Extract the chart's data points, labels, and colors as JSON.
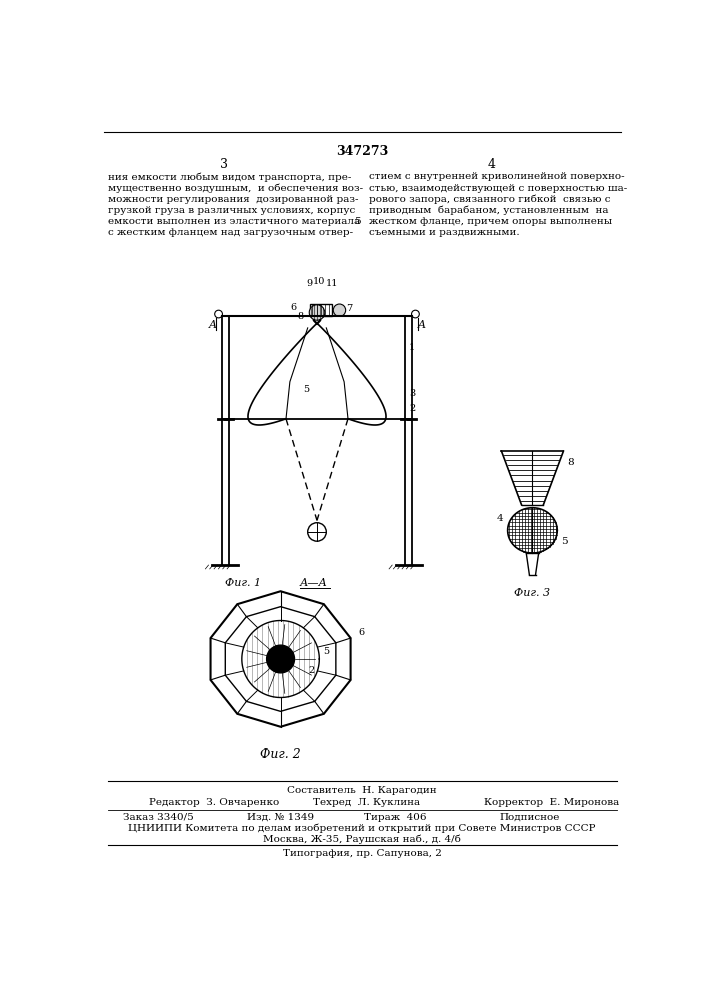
{
  "patent_number": "347273",
  "page_left": "3",
  "page_right": "4",
  "text_left": "ния емкости любым видом транспорта, пре-\nмущественно воздушным,  и обеспечения воз-\nможности регулирования  дозированной раз-\nгрузкой груза в различных условиях, корпус\nемкости выполнен из эластичного материала\nс жестким фланцем над загрузочным отвер-",
  "text_right_5": "5",
  "text_right": "стием с внутренней криволинейной поверхно-\nстью, взаимодействующей с поверхностью ша-\nрового запора, связанного гибкой  связью с\nприводным  барабаном, установленным  на\nжестком фланце, причем опоры выполнены\nсъемными и раздвижными.",
  "fig1_label": "Фиг. 1",
  "fig2_label": "Фиг. 2",
  "fig3_label": "Фиг. 3",
  "section_label": "А—А",
  "footer_line1": "Составитель  Н. Карагодин",
  "footer_line2_col1": "Редактор  З. Овчаренко",
  "footer_line2_col2": "Техред  Л. Куклина",
  "footer_line2_col3": "Корректор  Е. Миронова",
  "footer_line3_col1": "Заказ 3340/5",
  "footer_line3_col2": "Изд. № 1349",
  "footer_line3_col3": "Тираж  406",
  "footer_line3_col4": "Подписное",
  "footer_line4": "ЦНИИПИ Комитета по делам изобретений и открытий при Совете Министров СССР",
  "footer_line5": "Москва, Ж-35, Раушская наб., д. 4/б",
  "footer_line6": "Типография, пр. Сапунова, 2",
  "bg_color": "#ffffff",
  "text_color": "#000000",
  "line_color": "#000000"
}
